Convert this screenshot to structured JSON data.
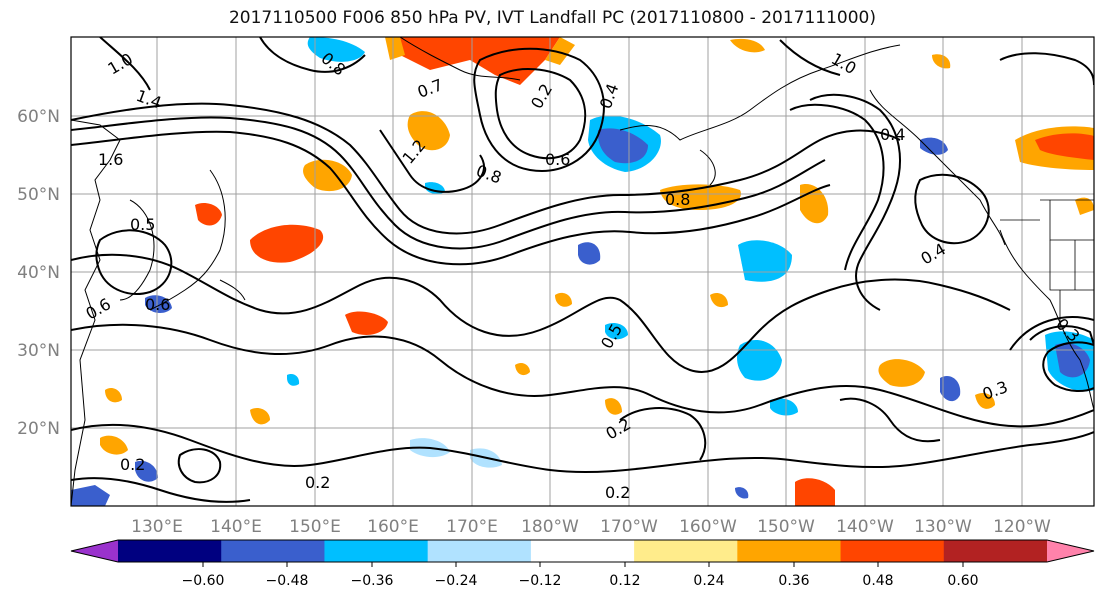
{
  "title": "2017110500 F006 850 hPa PV, IVT Landfall PC (2017110800 - 2017111000)",
  "lat_labels": [
    "60°N",
    "50°N",
    "40°N",
    "30°N",
    "20°N"
  ],
  "lon_labels": [
    "130°E",
    "140°E",
    "150°E",
    "160°E",
    "170°E",
    "180°W",
    "170°W",
    "160°W",
    "150°W",
    "140°W",
    "130°W",
    "120°W"
  ],
  "colorbar": {
    "tick_labels": [
      "−0.60",
      "−0.48",
      "−0.36",
      "−0.24",
      "−0.12",
      "0.12",
      "0.24",
      "0.36",
      "0.48",
      "0.60"
    ],
    "colors": [
      "#9a32cd",
      "#000080",
      "#3a5fcd",
      "#00bfff",
      "#b0e2ff",
      "#ffffff",
      "#ffec8b",
      "#ffa500",
      "#ff4500",
      "#b22222",
      "#ff82ab"
    ]
  },
  "contour_labels": [
    "1.0",
    "1.4",
    "1.6",
    "0.8",
    "1.2",
    "0.7",
    "0.2",
    "0.4",
    "0.6",
    "1.0",
    "0.8",
    "0.2",
    "0.6",
    "0.5",
    "0.6",
    "0.8",
    "0.4",
    "0.5",
    "0.3",
    "0.2",
    "0.2",
    "0.2",
    "0.3",
    "0.4"
  ],
  "colors": {
    "contour": "#000000",
    "grid": "#a0a0a0",
    "axis_text": "#808080"
  }
}
